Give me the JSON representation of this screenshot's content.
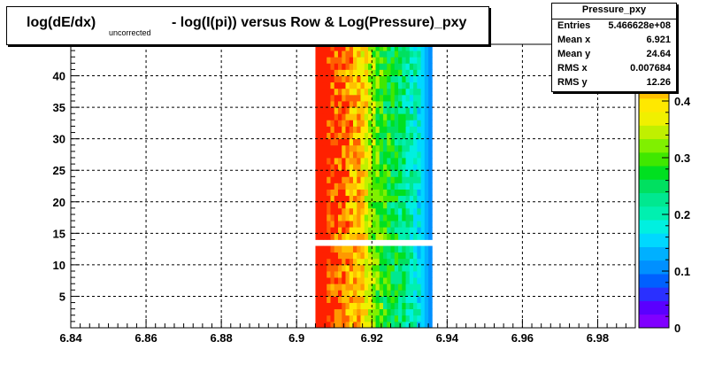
{
  "title": {
    "part1": "log(dE/dx)",
    "subscript": "uncorrected",
    "part2": "- log(I(pi)) versus Row & Log(Pressure)_pxy"
  },
  "stats": {
    "name": "Pressure_pxy",
    "rows": [
      {
        "key": "Entries",
        "value": "5.466628e+08"
      },
      {
        "key": "Mean x",
        "value": "6.921"
      },
      {
        "key": "Mean y",
        "value": "24.64"
      },
      {
        "key": "RMS x",
        "value": "0.007684"
      },
      {
        "key": "RMS y",
        "value": "12.26"
      }
    ]
  },
  "chart_data": {
    "type": "heatmap",
    "title": "log(dE/dx)_uncorrected - log(I(pi)) versus Row & Log(Pressure)_pxy",
    "xlim": [
      6.84,
      6.99
    ],
    "ylim": [
      0,
      45
    ],
    "x_ticks": [
      "6.84",
      "6.86",
      "6.88",
      "6.9",
      "6.92",
      "6.94",
      "6.96",
      "6.98"
    ],
    "y_ticks": [
      "5",
      "10",
      "15",
      "20",
      "25",
      "30",
      "35",
      "40"
    ],
    "grid": true,
    "filled_x_range": [
      6.905,
      6.936
    ],
    "filled_row_ranges": [
      [
        0,
        13
      ],
      [
        14,
        45
      ]
    ],
    "color_scale": {
      "min": 0,
      "max": 0.5,
      "ticks": [
        "0",
        "0.1",
        "0.2",
        "0.3",
        "0.4"
      ],
      "palette": [
        "#8000ff",
        "#5a00ff",
        "#2a30ff",
        "#0060ff",
        "#0090ff",
        "#00b0ff",
        "#00d8ff",
        "#00f0e0",
        "#00f0b0",
        "#00e890",
        "#00e060",
        "#00e020",
        "#40e800",
        "#80f000",
        "#c0f000",
        "#f0f000",
        "#ffe800",
        "#ffc000",
        "#ff9800",
        "#ff6000",
        "#ff2000"
      ]
    },
    "column_values": [
      0.49,
      0.49,
      0.48,
      0.48,
      0.47,
      0.47,
      0.46,
      0.46,
      0.44,
      0.44,
      0.42,
      0.42,
      0.4,
      0.38,
      0.35,
      0.33,
      0.31,
      0.29,
      0.28,
      0.27,
      0.26,
      0.25,
      0.24,
      0.23,
      0.22,
      0.21,
      0.19,
      0.18,
      0.16,
      0.13,
      0.1
    ]
  }
}
